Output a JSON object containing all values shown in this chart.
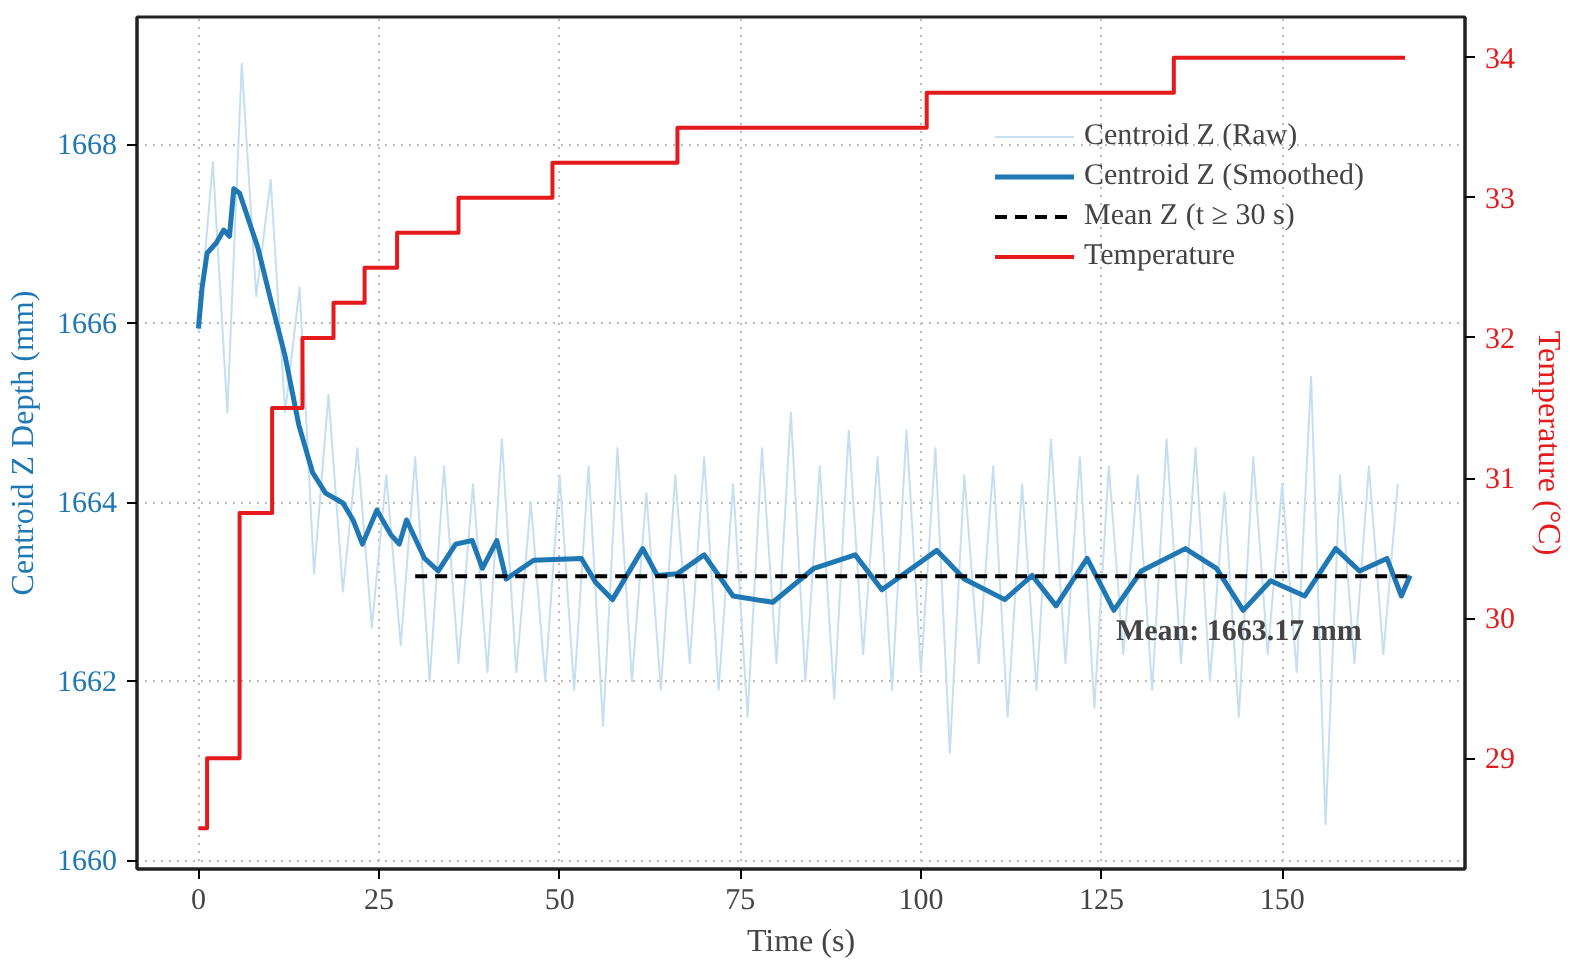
{
  "chart_data": {
    "type": "line",
    "xlabel": "Time (s)",
    "ylabel": "Centroid Z Depth (mm)",
    "y2label": "Temperature (°C)",
    "xlim": [
      -8.5,
      175.3
    ],
    "ylim": [
      1659.9,
      1669.42
    ],
    "y2lim": [
      28.21,
      34.29
    ],
    "xticks": [
      0,
      25,
      50,
      75,
      100,
      125,
      150
    ],
    "yticks": [
      1660,
      1662,
      1664,
      1666,
      1668
    ],
    "y2ticks": [
      29,
      30,
      31,
      32,
      33,
      34
    ],
    "grid": true,
    "legend": "top right",
    "series": [
      {
        "name": "Centroid Z (Raw)",
        "color": "#c6dff0",
        "x": [
          0,
          2,
          4,
          6,
          8,
          10,
          12,
          14,
          16,
          18,
          20,
          22,
          24,
          26,
          28,
          30,
          32,
          34,
          36,
          38,
          40,
          42,
          44,
          46,
          48,
          50,
          52,
          54,
          56,
          58,
          60,
          62,
          64,
          66,
          68,
          70,
          72,
          74,
          76,
          78,
          80,
          82,
          84,
          86,
          88,
          90,
          92,
          94,
          96,
          98,
          100,
          102,
          104,
          106,
          108,
          110,
          112,
          114,
          116,
          118,
          120,
          122,
          124,
          126,
          128,
          130,
          132,
          134,
          136,
          138,
          140,
          142,
          144,
          146,
          148,
          150,
          152,
          154,
          156,
          158,
          160,
          162,
          164,
          166
        ],
        "values": [
          1665.9,
          1667.8,
          1665.0,
          1668.9,
          1666.3,
          1667.6,
          1665.0,
          1666.4,
          1663.2,
          1665.2,
          1663.0,
          1664.6,
          1662.6,
          1664.3,
          1662.4,
          1664.5,
          1662.0,
          1664.4,
          1662.2,
          1664.2,
          1662.1,
          1664.7,
          1662.1,
          1664.0,
          1662.0,
          1664.3,
          1661.9,
          1664.4,
          1661.5,
          1664.6,
          1662.0,
          1664.1,
          1661.9,
          1664.3,
          1662.2,
          1664.5,
          1661.9,
          1664.2,
          1661.6,
          1664.6,
          1662.2,
          1665.0,
          1662.0,
          1664.4,
          1661.8,
          1664.8,
          1662.3,
          1664.5,
          1661.9,
          1664.8,
          1662.1,
          1664.6,
          1661.2,
          1664.3,
          1662.2,
          1664.4,
          1661.6,
          1664.2,
          1661.9,
          1664.7,
          1662.2,
          1664.5,
          1661.7,
          1664.4,
          1662.3,
          1664.3,
          1661.9,
          1664.7,
          1662.2,
          1664.6,
          1662.0,
          1664.1,
          1661.6,
          1664.5,
          1662.3,
          1664.2,
          1662.1,
          1665.4,
          1660.4,
          1664.3,
          1662.2,
          1664.4,
          1662.3,
          1664.2
        ]
      },
      {
        "name": "Centroid Z (Smoothed)",
        "color": "#1f77b4",
        "x": [
          0,
          0.5,
          1.2,
          2.5,
          3.5,
          4.3,
          4.9,
          5.7,
          8.2,
          10.1,
          12,
          13.9,
          15.8,
          17.6,
          20,
          21.4,
          22.7,
          24.7,
          26.6,
          27.8,
          28.8,
          31.3,
          33.2,
          35.6,
          37.9,
          39.3,
          41.3,
          42.6,
          46.4,
          53,
          55,
          57.3,
          61.5,
          63.5,
          66.3,
          70,
          74,
          79.5,
          85.2,
          90.9,
          94.6,
          102.2,
          106,
          111.6,
          115.4,
          118.7,
          123,
          126.7,
          130.5,
          136.6,
          140.9,
          144.6,
          148.4,
          153.1,
          157.4,
          160.7,
          164.5,
          166.5,
          167.7
        ],
        "values": [
          1665.94,
          1666.39,
          1666.78,
          1666.9,
          1667.04,
          1666.97,
          1667.5,
          1667.45,
          1666.85,
          1666.23,
          1665.63,
          1664.86,
          1664.33,
          1664.1,
          1663.99,
          1663.8,
          1663.53,
          1663.91,
          1663.64,
          1663.53,
          1663.8,
          1663.37,
          1663.23,
          1663.53,
          1663.57,
          1663.26,
          1663.57,
          1663.14,
          1663.35,
          1663.37,
          1663.1,
          1662.91,
          1663.48,
          1663.18,
          1663.2,
          1663.41,
          1662.95,
          1662.88,
          1663.26,
          1663.41,
          1663.02,
          1663.46,
          1663.14,
          1662.91,
          1663.18,
          1662.84,
          1663.37,
          1662.79,
          1663.23,
          1663.48,
          1663.26,
          1662.79,
          1663.12,
          1662.95,
          1663.48,
          1663.23,
          1663.37,
          1662.95,
          1663.18
        ]
      },
      {
        "name": "Mean Z (t ≥ 30 s)",
        "line_style": "dashed",
        "color": "#000000",
        "x": [
          30,
          167.7
        ],
        "values": [
          1663.17,
          1663.17
        ]
      },
      {
        "name": "Temperature",
        "type": "step",
        "axis": "y2",
        "color": "#e41a1c",
        "x": [
          0,
          1.2,
          5.7,
          10.2,
          14.4,
          18.7,
          23,
          27.5,
          36,
          49,
          66.3,
          100.8,
          135,
          167
        ],
        "values": [
          28.5,
          29,
          30.75,
          31.5,
          32,
          32.25,
          32.5,
          32.75,
          33,
          33.25,
          33.5,
          33.75,
          34,
          34
        ]
      }
    ],
    "annotations": [
      {
        "text": "Mean: 1663.17 mm",
        "x": 144,
        "y": 1662.55
      }
    ]
  }
}
